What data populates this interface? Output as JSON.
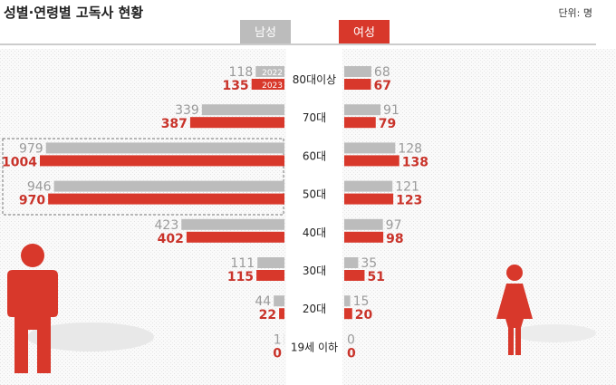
{
  "title": "성별·연령별 고독사 현황",
  "unit": "단위: 명",
  "colors": {
    "y2022": "#bcbcbc",
    "y2023": "#d8382b",
    "text2022": "#9a9a9a",
    "text2023": "#c9332a",
    "figure": "#d8382b"
  },
  "chart_data": {
    "type": "bar",
    "orientation": "horizontal-butterfly",
    "groups": [
      "남성",
      "여성"
    ],
    "categories": [
      "80대이상",
      "70대",
      "60대",
      "50대",
      "40대",
      "30대",
      "20대",
      "19세 이하"
    ],
    "year_labels": [
      "2022",
      "2023"
    ],
    "series": [
      {
        "name": "2022",
        "male": [
          118,
          339,
          979,
          946,
          423,
          111,
          44,
          1
        ],
        "female": [
          68,
          91,
          128,
          121,
          97,
          35,
          15,
          0
        ]
      },
      {
        "name": "2023",
        "male": [
          135,
          387,
          1004,
          970,
          402,
          115,
          22,
          0
        ],
        "female": [
          67,
          79,
          138,
          123,
          98,
          51,
          20,
          0
        ]
      }
    ],
    "highlighted_categories": [
      "60대",
      "50대"
    ]
  }
}
